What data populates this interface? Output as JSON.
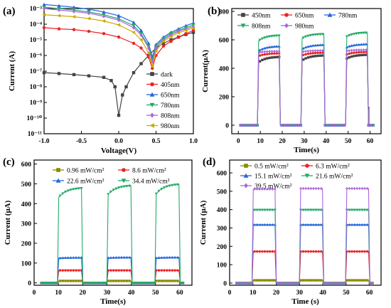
{
  "chart_data": [
    {
      "panel": "(a)",
      "type": "line",
      "xlabel": "Voltage(V)",
      "ylabel": "Current (A)",
      "yscale": "log",
      "xlim": [
        -1.0,
        1.0
      ],
      "ylim_exp": [
        -11,
        -3
      ],
      "x_ticks": [
        "-1.0",
        "-0.5",
        "0.0",
        "0.5",
        "1.0"
      ],
      "y_ticks": [
        "10⁻¹¹",
        "10⁻¹⁰",
        "10⁻⁹",
        "10⁻⁸",
        "10⁻⁷",
        "10⁻⁶",
        "10⁻⁵",
        "10⁻⁴",
        "10⁻³"
      ],
      "legend_position": "right",
      "series": [
        {
          "name": "dark",
          "color": "#444444",
          "marker": "square",
          "x": [
            -1.0,
            -0.8,
            -0.6,
            -0.4,
            -0.2,
            -0.1,
            -0.05,
            0.0,
            0.05,
            0.1,
            0.2,
            0.3,
            0.4,
            0.5,
            0.6,
            0.7,
            0.8,
            0.9,
            1.0
          ],
          "y": [
            8e-08,
            7e-08,
            6e-08,
            5e-08,
            4e-08,
            2.5e-08,
            1e-08,
            1.5e-10,
            3e-09,
            1e-08,
            8e-08,
            3e-07,
            1e-06,
            3e-06,
            6e-06,
            1e-05,
            1.5e-05,
            2.2e-05,
            3e-05
          ]
        },
        {
          "name": "405nm",
          "color": "#ee2222",
          "marker": "circle",
          "x": [
            -1.0,
            -0.8,
            -0.6,
            -0.4,
            -0.2,
            0.0,
            0.2,
            0.3,
            0.4,
            0.45,
            0.5,
            0.6,
            0.7,
            0.8,
            0.9,
            1.0
          ],
          "y": [
            6e-05,
            5e-05,
            4.5e-05,
            3.5e-05,
            2.5e-05,
            1.5e-05,
            6e-06,
            3e-06,
            8e-07,
            1.5e-07,
            1e-06,
            4e-06,
            8e-06,
            1.5e-05,
            2.5e-05,
            4e-05
          ]
        },
        {
          "name": "650nm",
          "color": "#2266dd",
          "marker": "triangle",
          "x": [
            -1.0,
            -0.8,
            -0.6,
            -0.4,
            -0.2,
            0.0,
            0.2,
            0.3,
            0.4,
            0.45,
            0.5,
            0.6,
            0.7,
            0.8,
            0.9,
            1.0
          ],
          "y": [
            0.0018,
            0.0015,
            0.0012,
            0.0009,
            0.0006,
            0.00035,
            0.00013,
            4e-05,
            6e-06,
            8e-07,
            5e-06,
            1.5e-05,
            3e-05,
            5e-05,
            8e-05,
            0.00012
          ]
        },
        {
          "name": "780nm",
          "color": "#22aa66",
          "marker": "triangle-down",
          "x": [
            -1.0,
            -0.8,
            -0.6,
            -0.4,
            -0.2,
            0.0,
            0.2,
            0.3,
            0.4,
            0.45,
            0.5,
            0.6,
            0.7,
            0.8,
            0.9,
            1.0
          ],
          "y": [
            0.0012,
            0.001,
            0.0008,
            0.0006,
            0.0004,
            0.00022,
            8e-05,
            2.5e-05,
            4e-06,
            5e-07,
            4e-06,
            1.2e-05,
            2.5e-05,
            4e-05,
            6e-05,
            9e-05
          ]
        },
        {
          "name": "808nm",
          "color": "#aa66dd",
          "marker": "diamond",
          "x": [
            -1.0,
            -0.8,
            -0.6,
            -0.4,
            -0.2,
            0.0,
            0.2,
            0.3,
            0.4,
            0.45,
            0.5,
            0.6,
            0.7,
            0.8,
            0.9,
            1.0
          ],
          "y": [
            0.001,
            0.0008,
            0.00065,
            0.0005,
            0.00032,
            0.00018,
            6e-05,
            2e-05,
            3e-06,
            4e-07,
            3e-06,
            1e-05,
            2e-05,
            3.5e-05,
            5e-05,
            7e-05
          ]
        },
        {
          "name": "980nm",
          "color": "#ccaa00",
          "marker": "triangle-left",
          "x": [
            -1.0,
            -0.8,
            -0.6,
            -0.4,
            -0.2,
            0.0,
            0.2,
            0.3,
            0.4,
            0.45,
            0.5,
            0.6,
            0.7,
            0.8,
            0.9,
            1.0
          ],
          "y": [
            0.0004,
            0.00035,
            0.0003,
            0.00023,
            0.00016,
            9e-05,
            3e-05,
            1e-05,
            1.5e-06,
            2e-07,
            2e-06,
            8e-06,
            1.6e-05,
            2.8e-05,
            4e-05,
            5.5e-05
          ]
        }
      ]
    },
    {
      "panel": "(b)",
      "type": "line",
      "xlabel": "Time(s)",
      "ylabel": "Current(μA)",
      "xlim": [
        -3,
        65
      ],
      "ylim": [
        -60,
        820
      ],
      "x_ticks": [
        "0",
        "10",
        "20",
        "30",
        "40",
        "50",
        "60"
      ],
      "y_ticks": [
        "0",
        "200",
        "400",
        "600",
        "800"
      ],
      "legend_position": "top",
      "series": [
        {
          "name": "450nm",
          "color": "#444444",
          "marker": "square",
          "on_values": [
            [
              440,
              480
            ],
            [
              455,
              490
            ],
            [
              465,
              495
            ]
          ],
          "spikes": [
            -10,
            130
          ]
        },
        {
          "name": "650nm",
          "color": "#ee2222",
          "marker": "circle",
          "on_values": [
            [
              485,
              505
            ],
            [
              490,
              510
            ],
            [
              495,
              515
            ]
          ]
        },
        {
          "name": "780nm",
          "color": "#2266dd",
          "marker": "triangle",
          "on_values": [
            [
              520,
              555
            ],
            [
              535,
              565
            ],
            [
              545,
              570
            ]
          ]
        },
        {
          "name": "808nm",
          "color": "#22aa66",
          "marker": "triangle-down",
          "on_values": [
            [
              590,
              630
            ],
            [
              610,
              640
            ],
            [
              620,
              650
            ]
          ]
        },
        {
          "name": "980nm",
          "color": "#aa66dd",
          "marker": "diamond",
          "on_values": [
            [
              510,
              520
            ],
            [
              515,
              525
            ],
            [
              520,
              530
            ]
          ]
        }
      ],
      "on_periods": [
        [
          9,
          19
        ],
        [
          29,
          39
        ],
        [
          49,
          59
        ]
      ]
    },
    {
      "panel": "(c)",
      "type": "line",
      "xlabel": "Time(s)",
      "ylabel": "Current (μA)",
      "xlim": [
        0,
        65
      ],
      "ylim": [
        -12,
        620
      ],
      "x_ticks": [
        "0",
        "10",
        "20",
        "30",
        "40",
        "50",
        "60"
      ],
      "y_ticks": [
        "0",
        "100",
        "200",
        "300",
        "400",
        "500",
        "600"
      ],
      "legend_position": "top",
      "series": [
        {
          "name": "0.96 mW/cm²",
          "color": "#8a8a00",
          "marker": "square",
          "on_values": [
            [
              10,
              10
            ],
            [
              10,
              10
            ],
            [
              10,
              10
            ]
          ]
        },
        {
          "name": "8.6 mW/cm²",
          "color": "#ee2222",
          "marker": "circle",
          "on_values": [
            [
              63,
              63
            ],
            [
              63,
              63
            ],
            [
              63,
              63
            ]
          ]
        },
        {
          "name": "22.6 mW/cm²",
          "color": "#2266dd",
          "marker": "triangle",
          "on_values": [
            [
              125,
              128
            ],
            [
              126,
              129
            ],
            [
              126,
              129
            ]
          ]
        },
        {
          "name": "34.4 mW/cm²",
          "color": "#22aa66",
          "marker": "triangle-down",
          "on_values": [
            [
              430,
              478
            ],
            [
              440,
              490
            ],
            [
              445,
              497
            ]
          ]
        }
      ],
      "on_periods": [
        [
          10,
          20
        ],
        [
          30,
          40
        ],
        [
          50,
          60
        ]
      ]
    },
    {
      "panel": "(d)",
      "type": "line",
      "xlabel": "Time (s)",
      "ylabel": "Current (μA)",
      "xlim": [
        0,
        65
      ],
      "ylim": [
        -12,
        670
      ],
      "x_ticks": [
        "0",
        "10",
        "20",
        "30",
        "40",
        "50",
        "60"
      ],
      "y_ticks": [
        "0",
        "100",
        "200",
        "300",
        "400",
        "500",
        "600"
      ],
      "legend_position": "top",
      "series": [
        {
          "name": "0.5 mW/cm²",
          "color": "#8a8a00",
          "marker": "square",
          "on_values": [
            [
              15,
              15
            ],
            [
              15,
              15
            ],
            [
              15,
              15
            ]
          ]
        },
        {
          "name": "6.3 mW/cm²",
          "color": "#ee2222",
          "marker": "circle",
          "on_values": [
            [
              172,
              172
            ],
            [
              172,
              172
            ],
            [
              172,
              172
            ]
          ]
        },
        {
          "name": "15.1 mW/cm²",
          "color": "#2266dd",
          "marker": "triangle",
          "on_values": [
            [
              318,
              318
            ],
            [
              318,
              318
            ],
            [
              318,
              318
            ]
          ]
        },
        {
          "name": "21.6 mW/cm²",
          "color": "#22aa66",
          "marker": "triangle-down",
          "on_values": [
            [
              398,
              398
            ],
            [
              398,
              398
            ],
            [
              398,
              398
            ]
          ]
        },
        {
          "name": "39.5 mW/cm²",
          "color": "#aa66dd",
          "marker": "diamond",
          "on_values": [
            [
              512,
              512
            ],
            [
              515,
              515
            ],
            [
              515,
              515
            ]
          ]
        }
      ],
      "on_periods": [
        [
          10,
          20
        ],
        [
          30,
          40
        ],
        [
          50,
          60
        ]
      ]
    }
  ]
}
